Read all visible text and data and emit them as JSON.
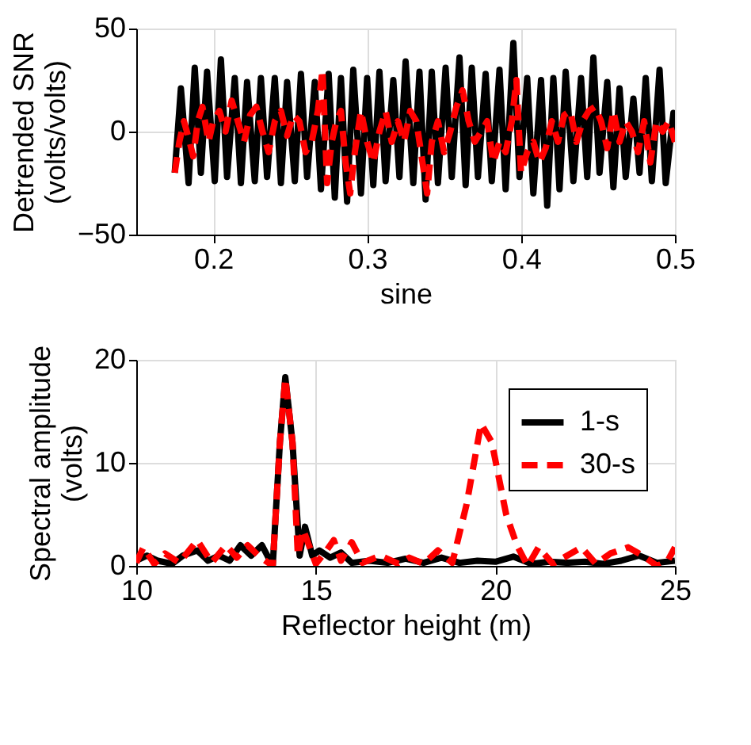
{
  "chart_data": [
    {
      "type": "line",
      "xlabel": "sine",
      "ylabel": "Detrended SNR\n(volts/volts)",
      "xlim": [
        0.15,
        0.5
      ],
      "ylim": [
        -50,
        50
      ],
      "xticks": [
        0.2,
        0.3,
        0.4,
        0.5
      ],
      "yticks": [
        -50,
        0,
        50
      ],
      "grid": true,
      "legend": false,
      "series": [
        {
          "color": "#000000",
          "line_style": "solid",
          "x": [
            0.175,
            0.179,
            0.184,
            0.188,
            0.192,
            0.196,
            0.201,
            0.205,
            0.209,
            0.214,
            0.218,
            0.222,
            0.227,
            0.231,
            0.235,
            0.24,
            0.244,
            0.248,
            0.253,
            0.257,
            0.261,
            0.266,
            0.27,
            0.275,
            0.279,
            0.283,
            0.287,
            0.291,
            0.296,
            0.3,
            0.304,
            0.308,
            0.312,
            0.317,
            0.321,
            0.325,
            0.33,
            0.334,
            0.338,
            0.342,
            0.346,
            0.351,
            0.355,
            0.36,
            0.364,
            0.368,
            0.372,
            0.377,
            0.381,
            0.386,
            0.39,
            0.395,
            0.399,
            0.404,
            0.408,
            0.413,
            0.417,
            0.421,
            0.425,
            0.429,
            0.434,
            0.439,
            0.443,
            0.447,
            0.451,
            0.456,
            0.46,
            0.464,
            0.468,
            0.473,
            0.477,
            0.481,
            0.485,
            0.49,
            0.494,
            0.499,
            0.5
          ],
          "values": [
            -20,
            21,
            -25,
            31,
            -20,
            29,
            -24,
            35,
            -22,
            26,
            -25,
            24,
            -24,
            26,
            -22,
            26,
            -25,
            24,
            -24,
            28,
            -22,
            24,
            -28,
            28,
            -32,
            26,
            -34,
            30,
            -30,
            26,
            -26,
            29,
            -24,
            25,
            -22,
            34,
            -25,
            29,
            -33,
            29,
            -25,
            31,
            -22,
            36,
            -26,
            31,
            -22,
            28,
            -24,
            30,
            -28,
            43,
            -22,
            26,
            -30,
            25,
            -36,
            26,
            -28,
            29,
            -24,
            26,
            -22,
            36,
            -20,
            24,
            -27,
            21,
            -22,
            16,
            -20,
            26,
            -24,
            30,
            -25,
            9,
            -5
          ]
        },
        {
          "color": "#ff0000",
          "line_style": "dashed",
          "x": [
            0.175,
            0.178,
            0.181,
            0.184,
            0.187,
            0.19,
            0.193,
            0.197,
            0.2,
            0.204,
            0.208,
            0.212,
            0.216,
            0.22,
            0.224,
            0.228,
            0.232,
            0.236,
            0.24,
            0.244,
            0.248,
            0.252,
            0.256,
            0.26,
            0.264,
            0.268,
            0.271,
            0.274,
            0.277,
            0.28,
            0.283,
            0.286,
            0.289,
            0.292,
            0.296,
            0.3,
            0.304,
            0.308,
            0.312,
            0.316,
            0.32,
            0.324,
            0.328,
            0.332,
            0.336,
            0.339,
            0.342,
            0.346,
            0.35,
            0.354,
            0.358,
            0.362,
            0.366,
            0.37,
            0.374,
            0.378,
            0.382,
            0.386,
            0.39,
            0.394,
            0.397,
            0.4,
            0.404,
            0.408,
            0.412,
            0.416,
            0.42,
            0.424,
            0.428,
            0.432,
            0.436,
            0.44,
            0.444,
            0.448,
            0.452,
            0.456,
            0.46,
            0.464,
            0.468,
            0.472,
            0.476,
            0.48,
            0.484,
            0.488,
            0.492,
            0.496,
            0.5
          ],
          "values": [
            -20,
            -5,
            5,
            -3,
            -12,
            5,
            12,
            -5,
            5,
            10,
            0,
            15,
            5,
            -5,
            8,
            12,
            0,
            -10,
            5,
            10,
            -2,
            8,
            5,
            -10,
            -5,
            10,
            30,
            -25,
            -5,
            5,
            10,
            -15,
            -30,
            -10,
            10,
            -5,
            -15,
            0,
            10,
            -5,
            5,
            -5,
            10,
            5,
            -15,
            -30,
            -5,
            5,
            -10,
            0,
            12,
            20,
            5,
            -5,
            0,
            5,
            -15,
            -5,
            -10,
            5,
            25,
            -20,
            -10,
            -5,
            -15,
            -8,
            5,
            -5,
            8,
            10,
            -5,
            5,
            10,
            12,
            5,
            -8,
            10,
            -5,
            5,
            0,
            -10,
            5,
            -15,
            5,
            0,
            5,
            -5
          ]
        }
      ]
    },
    {
      "type": "line",
      "xlabel": "Reflector height (m)",
      "ylabel": "Spectral amplitude\n(volts)",
      "xlim": [
        10,
        25
      ],
      "ylim": [
        0,
        20
      ],
      "xticks": [
        10,
        15,
        20,
        25
      ],
      "yticks": [
        0,
        10,
        20
      ],
      "grid": true,
      "legend": "top right",
      "series": [
        {
          "name": "1-s",
          "color": "#000000",
          "line_style": "solid",
          "x": [
            10,
            10.3,
            10.6,
            11,
            11.3,
            11.7,
            12,
            12.3,
            12.6,
            12.9,
            13.2,
            13.5,
            13.8,
            14,
            14.15,
            14.35,
            14.55,
            14.7,
            14.9,
            15.1,
            15.4,
            15.7,
            16,
            16.5,
            17,
            17.5,
            18,
            18.5,
            19,
            19.5,
            20,
            20.5,
            21,
            21.5,
            22,
            22.5,
            23,
            23.5,
            24,
            24.5,
            25
          ],
          "values": [
            0.5,
            1,
            0.5,
            0.2,
            1,
            1.5,
            0.5,
            1,
            0.5,
            2,
            1,
            2,
            0,
            12,
            18.3,
            12,
            1,
            3.8,
            1,
            1.5,
            0.8,
            1.3,
            0.3,
            0.5,
            0.3,
            0.7,
            0.3,
            0.8,
            0.3,
            0.5,
            0.4,
            0.9,
            0.2,
            0.4,
            0.3,
            0.4,
            0.2,
            0.5,
            1,
            0.3,
            0.5
          ]
        },
        {
          "name": "30-s",
          "color": "#ff0000",
          "line_style": "dashed",
          "x": [
            10,
            10.2,
            10.5,
            10.8,
            11.2,
            11.7,
            12.1,
            12.5,
            12.8,
            13.1,
            13.4,
            13.8,
            14,
            14.15,
            14.35,
            14.5,
            14.65,
            15,
            15.3,
            15.5,
            15.7,
            16,
            16.3,
            16.8,
            17.3,
            17.6,
            18,
            18.4,
            18.8,
            19.2,
            19.6,
            19.9,
            20.3,
            20.6,
            20.9,
            21.2,
            21.6,
            22,
            22.4,
            22.8,
            23.2,
            23.7,
            24.1,
            24.5,
            24.8,
            25
          ],
          "values": [
            0.3,
            1.8,
            0.2,
            1.2,
            0.3,
            2.5,
            0.3,
            2,
            0.8,
            2,
            1,
            0,
            12,
            18.2,
            12,
            1,
            3.5,
            0.2,
            1.5,
            2.5,
            0.5,
            2.3,
            0.3,
            1,
            0.2,
            0.8,
            0.2,
            1.5,
            0.3,
            6,
            13.8,
            12,
            5,
            2,
            0,
            1.8,
            0.2,
            1,
            1.8,
            0.2,
            1.2,
            1.8,
            1,
            0,
            0.5,
            1.8
          ]
        }
      ]
    }
  ]
}
